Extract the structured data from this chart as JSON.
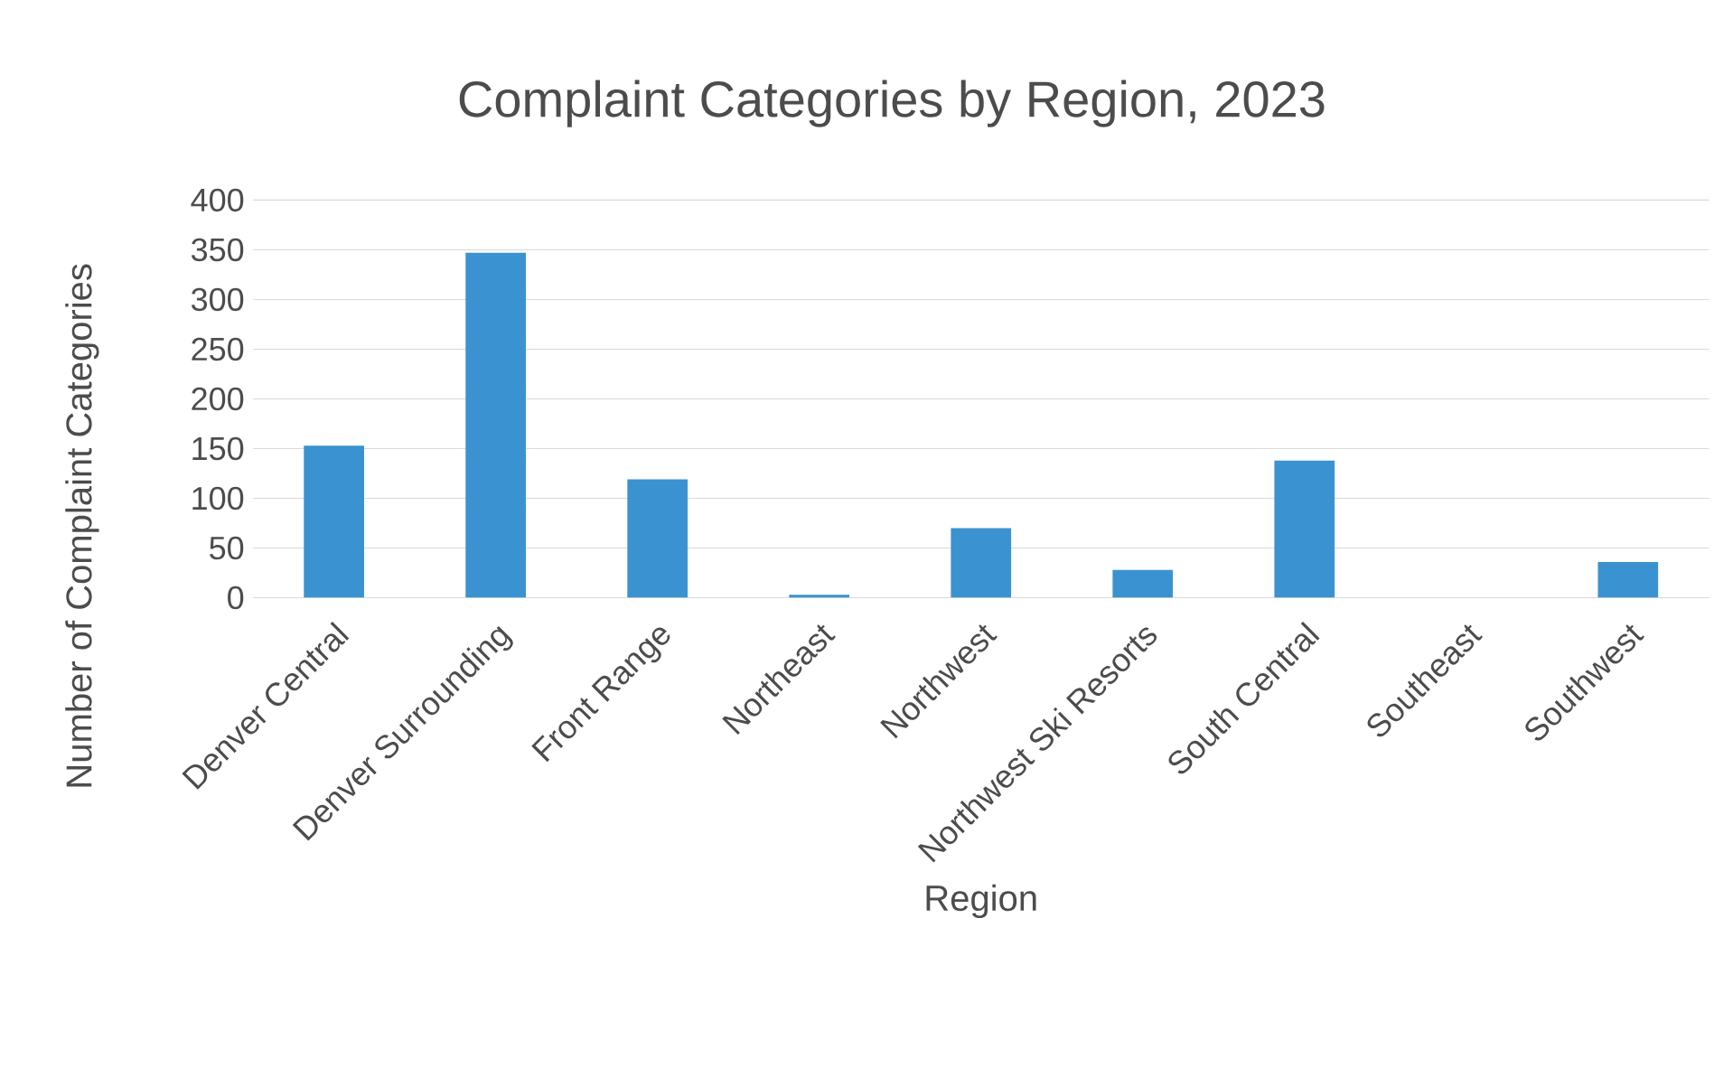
{
  "chart_data": {
    "type": "bar",
    "title": "Complaint Categories by Region, 2023",
    "xlabel": "Region",
    "ylabel": "Number of Complaint Categories",
    "categories": [
      "Denver Central",
      "Denver Surrounding",
      "Front Range",
      "Northeast",
      "Northwest",
      "Northwest Ski Resorts",
      "South Central",
      "Southeast",
      "Southwest"
    ],
    "values": [
      153,
      347,
      119,
      3,
      70,
      28,
      138,
      0,
      36
    ],
    "color": "#3a93d0",
    "ylim": [
      0,
      400
    ],
    "yticks": [
      0,
      50,
      100,
      150,
      200,
      250,
      300,
      350,
      400
    ],
    "grid": "y"
  }
}
